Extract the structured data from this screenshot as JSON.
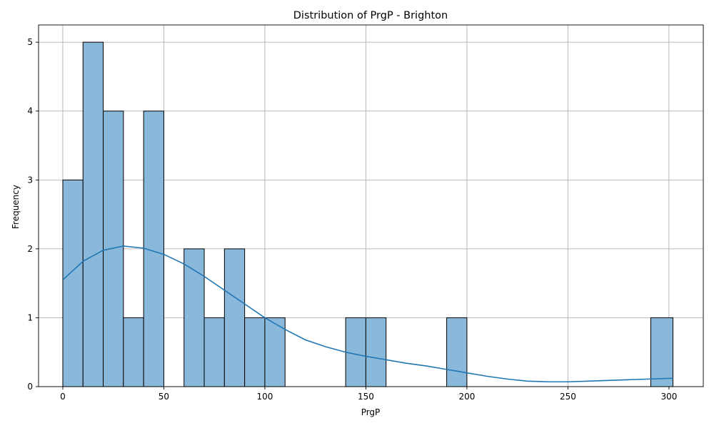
{
  "chart_data": {
    "type": "bar",
    "title": "Distribution of PrgP - Brighton",
    "xlabel": "PrgP",
    "ylabel": "Frequency",
    "xlim": [
      -12,
      317
    ],
    "ylim": [
      0,
      5.25
    ],
    "xticks": [
      0,
      50,
      100,
      150,
      200,
      250,
      300
    ],
    "yticks": [
      0,
      1,
      2,
      3,
      4,
      5
    ],
    "grid": true,
    "bins": [
      {
        "x0": 0,
        "x1": 10,
        "count": 3
      },
      {
        "x0": 10,
        "x1": 20,
        "count": 5
      },
      {
        "x0": 20,
        "x1": 30,
        "count": 4
      },
      {
        "x0": 30,
        "x1": 40,
        "count": 1
      },
      {
        "x0": 40,
        "x1": 50,
        "count": 4
      },
      {
        "x0": 50,
        "x1": 60,
        "count": 0
      },
      {
        "x0": 60,
        "x1": 70,
        "count": 2
      },
      {
        "x0": 70,
        "x1": 80,
        "count": 1
      },
      {
        "x0": 80,
        "x1": 90,
        "count": 2
      },
      {
        "x0": 90,
        "x1": 100,
        "count": 1
      },
      {
        "x0": 100,
        "x1": 110,
        "count": 1
      },
      {
        "x0": 140,
        "x1": 150,
        "count": 1
      },
      {
        "x0": 150,
        "x1": 160,
        "count": 1
      },
      {
        "x0": 190,
        "x1": 200,
        "count": 1
      },
      {
        "x0": 291,
        "x1": 302,
        "count": 1
      }
    ],
    "kde": {
      "x": [
        0,
        10,
        20,
        30,
        40,
        50,
        60,
        70,
        80,
        90,
        100,
        110,
        120,
        130,
        140,
        150,
        160,
        170,
        180,
        190,
        200,
        210,
        220,
        230,
        240,
        250,
        260,
        270,
        280,
        290,
        300,
        302
      ],
      "y": [
        1.55,
        1.82,
        1.98,
        2.04,
        2.01,
        1.92,
        1.78,
        1.6,
        1.4,
        1.2,
        1.0,
        0.83,
        0.68,
        0.58,
        0.5,
        0.44,
        0.39,
        0.34,
        0.3,
        0.25,
        0.2,
        0.15,
        0.11,
        0.08,
        0.07,
        0.07,
        0.08,
        0.09,
        0.1,
        0.11,
        0.12,
        0.12
      ]
    },
    "series_color": "#1f77b4",
    "bar_color": "#8ab8db"
  }
}
